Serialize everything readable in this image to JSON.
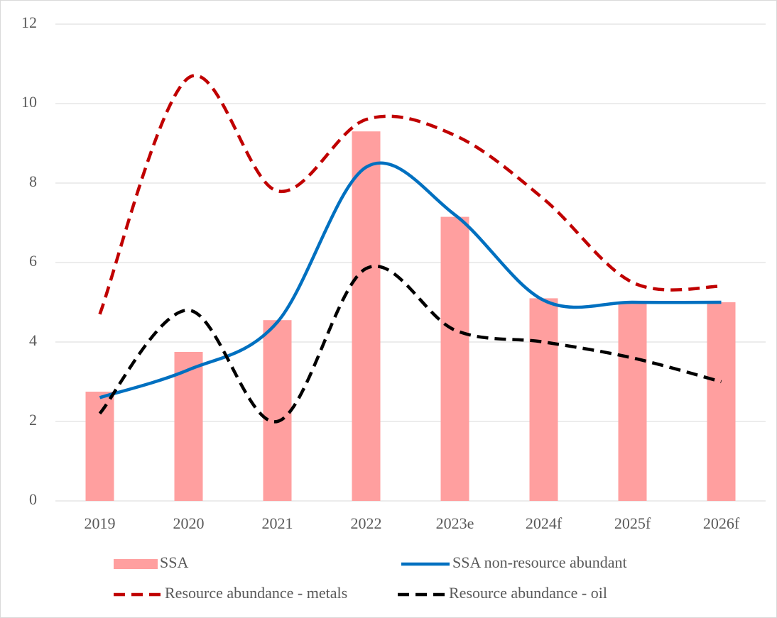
{
  "chart_data": {
    "type": "bar-line",
    "categories": [
      "2019",
      "2020",
      "2021",
      "2022",
      "2023e",
      "2024f",
      "2025f",
      "2026f"
    ],
    "series": [
      {
        "name": "SSA",
        "type": "bar",
        "color": "#ff9f9f",
        "values": [
          2.75,
          3.75,
          4.55,
          9.3,
          7.15,
          5.1,
          5.0,
          5.0
        ]
      },
      {
        "name": "SSA non-resource abundant",
        "type": "line",
        "dash": "solid",
        "color": "#0070c0",
        "values": [
          2.6,
          3.3,
          4.5,
          8.4,
          7.2,
          5.05,
          5.0,
          5.0
        ]
      },
      {
        "name": "Resource abundance - metals",
        "type": "line",
        "dash": "dashed",
        "color": "#c00000",
        "values": [
          4.7,
          10.65,
          7.8,
          9.6,
          9.2,
          7.6,
          5.5,
          5.4
        ]
      },
      {
        "name": "Resource abundance - oil",
        "type": "line",
        "dash": "dashed",
        "color": "#000000",
        "values": [
          2.2,
          4.8,
          2.0,
          5.85,
          4.3,
          4.0,
          3.6,
          3.0
        ]
      }
    ],
    "ylim": [
      0,
      12
    ],
    "yticks": [
      0,
      2,
      4,
      6,
      8,
      10,
      12
    ],
    "grid": true,
    "smooth": true,
    "legend": "bottom"
  }
}
